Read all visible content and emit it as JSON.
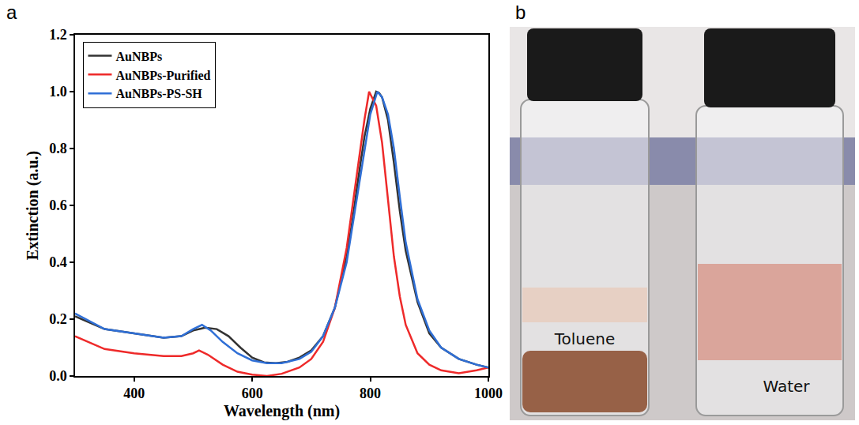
{
  "chart_data": {
    "type": "line",
    "x_label": "Wavelength (nm)",
    "y_label": "Extinction (a.u.)",
    "xlim": [
      300,
      1000
    ],
    "xticks": [
      400,
      600,
      800,
      1000
    ],
    "ylim": [
      0,
      1.2
    ],
    "yticks": [
      {
        "value": 0,
        "label": "0.0"
      },
      {
        "value": 0.2,
        "label": "0.2"
      },
      {
        "value": 0.4,
        "label": "0.4"
      },
      {
        "value": 0.6,
        "label": "0.6"
      },
      {
        "value": 0.8,
        "label": "0.8"
      },
      {
        "value": 1.0,
        "label": "1.0"
      },
      {
        "value": 1.2,
        "label": "1.2"
      }
    ],
    "grid": false,
    "legend": "upper left",
    "series": [
      {
        "name": "AuNBPs",
        "color": "#333333",
        "x": [
          300,
          350,
          400,
          450,
          480,
          500,
          520,
          540,
          560,
          580,
          600,
          620,
          640,
          660,
          680,
          700,
          720,
          740,
          760,
          770,
          780,
          790,
          800,
          810,
          815,
          820,
          830,
          840,
          850,
          860,
          880,
          900,
          920,
          950,
          980,
          1000
        ],
        "values": [
          0.21,
          0.165,
          0.15,
          0.135,
          0.14,
          0.16,
          0.17,
          0.165,
          0.14,
          0.1,
          0.065,
          0.048,
          0.045,
          0.05,
          0.065,
          0.09,
          0.14,
          0.24,
          0.42,
          0.55,
          0.7,
          0.84,
          0.94,
          1.0,
          0.995,
          0.98,
          0.9,
          0.75,
          0.58,
          0.44,
          0.26,
          0.15,
          0.1,
          0.06,
          0.04,
          0.03
        ]
      },
      {
        "name": "AuNBPs-Purified",
        "color": "#ee2a2a",
        "x": [
          300,
          350,
          400,
          450,
          480,
          500,
          510,
          525,
          550,
          575,
          600,
          625,
          650,
          680,
          700,
          720,
          740,
          760,
          780,
          790,
          798,
          810,
          820,
          830,
          840,
          850,
          860,
          880,
          900,
          920,
          950,
          980,
          1000
        ],
        "values": [
          0.14,
          0.095,
          0.08,
          0.07,
          0.07,
          0.08,
          0.09,
          0.075,
          0.04,
          0.015,
          0.005,
          0.0,
          0.008,
          0.03,
          0.06,
          0.12,
          0.24,
          0.45,
          0.75,
          0.9,
          1.0,
          0.95,
          0.82,
          0.62,
          0.42,
          0.28,
          0.18,
          0.08,
          0.04,
          0.02,
          0.01,
          0.02,
          0.03
        ]
      },
      {
        "name": "AuNBPs-PS-SH",
        "color": "#2f6fd6",
        "x": [
          300,
          350,
          400,
          450,
          480,
          500,
          515,
          530,
          550,
          575,
          600,
          625,
          650,
          680,
          700,
          720,
          740,
          760,
          780,
          800,
          812,
          820,
          830,
          840,
          850,
          860,
          880,
          900,
          920,
          950,
          980,
          1000
        ],
        "values": [
          0.22,
          0.165,
          0.15,
          0.135,
          0.14,
          0.165,
          0.18,
          0.16,
          0.12,
          0.08,
          0.055,
          0.045,
          0.045,
          0.06,
          0.085,
          0.14,
          0.24,
          0.4,
          0.66,
          0.92,
          1.0,
          0.98,
          0.92,
          0.8,
          0.63,
          0.47,
          0.27,
          0.16,
          0.1,
          0.06,
          0.04,
          0.03
        ]
      }
    ]
  },
  "panel_labels": [
    "a",
    "b"
  ],
  "photo": {
    "vial_labels": [
      "Toluene",
      "Water"
    ]
  }
}
